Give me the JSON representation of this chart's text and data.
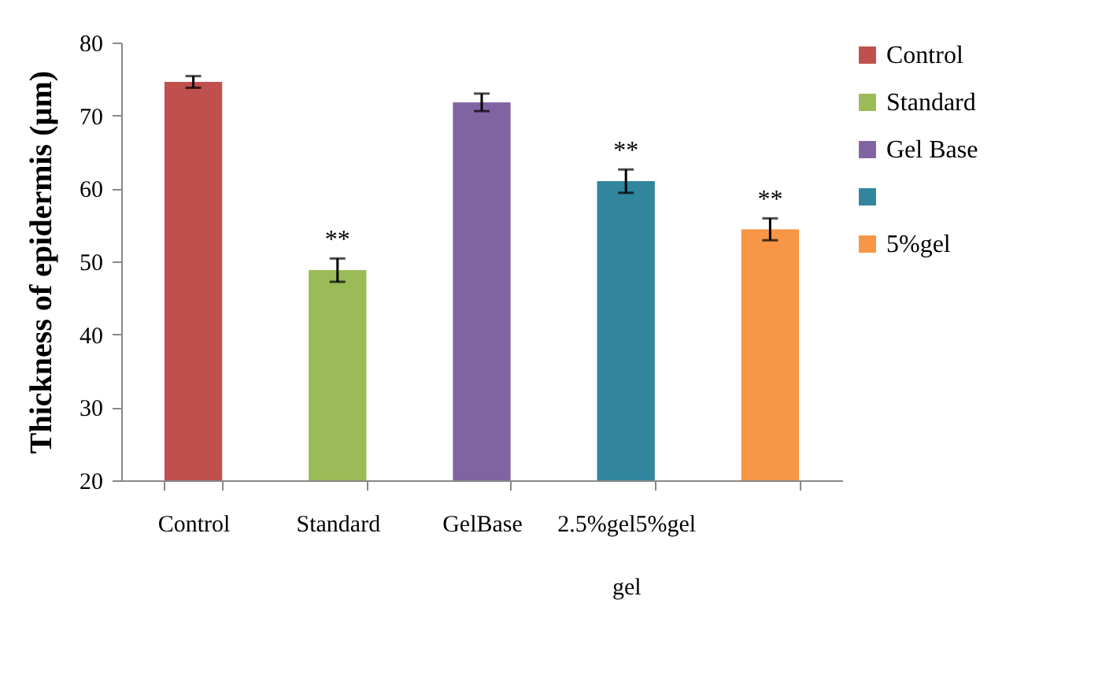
{
  "chart_data": {
    "type": "bar",
    "ylabel": "Thickness of epidermis (µm)",
    "categories": [
      "Control",
      "Standard",
      "GelBase",
      "2.5%gel5%gel\ngel",
      null
    ],
    "ylim": [
      20,
      80
    ],
    "yticks": [
      20,
      30,
      40,
      50,
      60,
      70,
      80
    ],
    "grid": false,
    "legend": "right",
    "series": [
      {
        "name": "Control",
        "color": "#c0504d",
        "values": [
          74.6,
          null,
          null,
          null,
          null
        ],
        "errors": [
          0.8,
          null,
          null,
          null,
          null
        ]
      },
      {
        "name": "Standard",
        "color": "#9bbb59",
        "values": [
          null,
          48.8,
          null,
          null,
          null
        ],
        "errors": [
          null,
          1.6,
          null,
          null,
          null
        ],
        "value_labels": [
          null,
          "**",
          null,
          null,
          null
        ]
      },
      {
        "name": "Gel Base",
        "color": "#8064a2",
        "values": [
          null,
          null,
          71.8,
          null,
          null
        ],
        "errors": [
          null,
          null,
          1.2,
          null,
          null
        ]
      },
      {
        "color": "#31859c",
        "values": [
          null,
          null,
          null,
          61.0,
          null
        ],
        "errors": [
          null,
          null,
          null,
          1.6,
          null
        ],
        "value_labels": [
          null,
          null,
          null,
          "**",
          null
        ]
      },
      {
        "name": "5%gel",
        "color": "#f79646",
        "values": [
          null,
          null,
          null,
          null,
          54.4
        ],
        "errors": [
          null,
          null,
          null,
          null,
          1.5
        ],
        "value_labels": [
          null,
          null,
          null,
          null,
          "**"
        ]
      }
    ]
  }
}
